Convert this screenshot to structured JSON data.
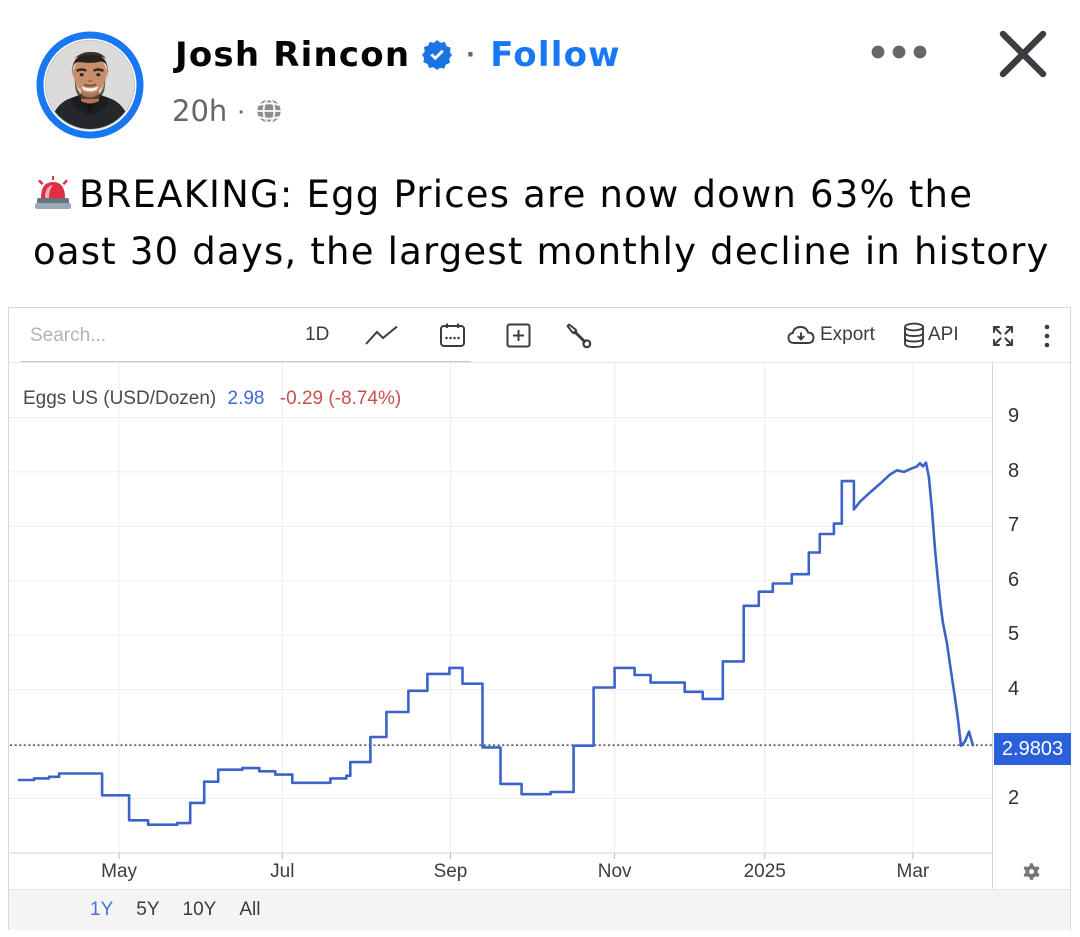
{
  "post": {
    "author": "Josh Rincon",
    "verified_icon": "verified-badge",
    "separator": "·",
    "follow_label": "Follow",
    "timestamp": "20h",
    "audience_icon": "globe-public",
    "leading_emoji": "rotating-police-light",
    "text_lines": [
      "BREAKING: Egg Prices are now down 63% the",
      "oast 30 days, the largest monthly decline in history"
    ]
  },
  "toolbar": {
    "search_placeholder": "Search...",
    "interval_label": "1D",
    "icons": [
      "line-chart",
      "calendar",
      "add-indicator",
      "tools-wrench"
    ],
    "export_label": "Export",
    "api_label": "API",
    "right_icons": [
      "export-cloud",
      "api-database",
      "fullscreen",
      "more-kebab"
    ]
  },
  "legend": {
    "name": "Eggs US (USD/Dozen)",
    "price": "2.98",
    "change": "-0.29 (-8.74%)"
  },
  "price_badge": "2.9803",
  "ranges": [
    {
      "label": "1Y",
      "active": true
    },
    {
      "label": "5Y",
      "active": false
    },
    {
      "label": "10Y",
      "active": false
    },
    {
      "label": "All",
      "active": false
    }
  ],
  "colors": {
    "accent_blue": "#1877f2",
    "line_blue": "#3c63c8",
    "badge_blue": "#2b60db",
    "price_blue": "#3f6ad8",
    "change_red": "#c94f4c",
    "grid": "#ededed",
    "axis": "#d5d5d5"
  },
  "chart_data": {
    "type": "line",
    "title": "Eggs US (USD/Dozen)",
    "last_price": 2.9803,
    "change": -0.29,
    "change_pct": "-8.74%",
    "x_range": "1Y (Mar 2024 - Mar 2025)",
    "x_ticks": [
      {
        "label": "May",
        "f": 0.111
      },
      {
        "label": "Jul",
        "f": 0.277
      },
      {
        "label": "Sep",
        "f": 0.4481
      },
      {
        "label": "Nov",
        "f": 0.6151
      },
      {
        "label": "2025",
        "f": 0.7678
      },
      {
        "label": "Mar",
        "f": 0.9185
      }
    ],
    "ylim": [
      1,
      10
    ],
    "y_ticks": [
      2,
      3,
      4,
      5,
      6,
      7,
      8,
      9
    ],
    "y_tick_hidden_by_badge": 3,
    "grid": true,
    "legend_position": "top-left",
    "current_price_line": 2.9803,
    "step_until": 45,
    "series": [
      {
        "name": "Eggs US (USD/Dozen)",
        "points": [
          [
            0.0092,
            2.34
          ],
          [
            0.0244,
            2.37
          ],
          [
            0.0397,
            2.4
          ],
          [
            0.0499,
            2.46
          ],
          [
            0.0937,
            2.06
          ],
          [
            0.1212,
            1.6
          ],
          [
            0.1405,
            1.52
          ],
          [
            0.1701,
            1.55
          ],
          [
            0.1833,
            1.92
          ],
          [
            0.1976,
            2.31
          ],
          [
            0.2118,
            2.53
          ],
          [
            0.2363,
            2.56
          ],
          [
            0.2536,
            2.5
          ],
          [
            0.2699,
            2.44
          ],
          [
            0.2872,
            2.29
          ],
          [
            0.3259,
            2.37
          ],
          [
            0.3422,
            2.42
          ],
          [
            0.3462,
            2.67
          ],
          [
            0.3666,
            3.13
          ],
          [
            0.3829,
            3.59
          ],
          [
            0.4053,
            3.98
          ],
          [
            0.4246,
            4.29
          ],
          [
            0.447,
            4.4
          ],
          [
            0.4603,
            4.11
          ],
          [
            0.4807,
            2.94
          ],
          [
            0.499,
            2.27
          ],
          [
            0.5204,
            2.08
          ],
          [
            0.5499,
            2.12
          ],
          [
            0.5733,
            2.97
          ],
          [
            0.5937,
            4.04
          ],
          [
            0.6151,
            4.4
          ],
          [
            0.6354,
            4.27
          ],
          [
            0.6517,
            4.13
          ],
          [
            0.6864,
            3.96
          ],
          [
            0.7047,
            3.83
          ],
          [
            0.7251,
            4.52
          ],
          [
            0.7464,
            5.54
          ],
          [
            0.7617,
            5.8
          ],
          [
            0.776,
            5.95
          ],
          [
            0.7953,
            6.12
          ],
          [
            0.8126,
            6.52
          ],
          [
            0.8238,
            6.86
          ],
          [
            0.8381,
            7.05
          ],
          [
            0.8462,
            7.83
          ],
          [
            0.8585,
            7.31
          ],
          [
            0.8646,
            7.45
          ],
          [
            0.8747,
            7.62
          ],
          [
            0.8849,
            7.78
          ],
          [
            0.8951,
            7.95
          ],
          [
            0.9022,
            8.03
          ],
          [
            0.9094,
            8.0
          ],
          [
            0.9155,
            8.05
          ],
          [
            0.9226,
            8.1
          ],
          [
            0.9257,
            8.16
          ],
          [
            0.9287,
            8.1
          ],
          [
            0.9318,
            8.17
          ],
          [
            0.9348,
            7.9
          ],
          [
            0.9379,
            7.3
          ],
          [
            0.9409,
            6.6
          ],
          [
            0.944,
            6.0
          ],
          [
            0.947,
            5.5
          ],
          [
            0.9491,
            5.22
          ],
          [
            0.9532,
            4.85
          ],
          [
            0.9572,
            4.35
          ],
          [
            0.9613,
            3.85
          ],
          [
            0.9644,
            3.45
          ],
          [
            0.9674,
            2.97
          ],
          [
            0.9715,
            3.05
          ],
          [
            0.9756,
            3.23
          ],
          [
            0.9796,
            2.98
          ]
        ]
      }
    ]
  }
}
